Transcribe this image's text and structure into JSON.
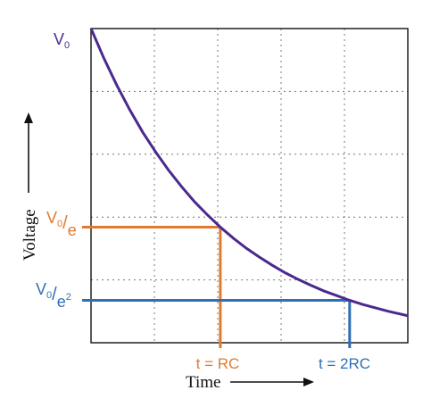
{
  "chart_data": {
    "type": "line",
    "title": "",
    "xlabel": "Time",
    "ylabel": "Voltage",
    "xlim": [
      0,
      2.45
    ],
    "ylim": [
      0,
      1.0
    ],
    "grid": true,
    "grid_divisions": {
      "x": 5,
      "y": 5
    },
    "series": [
      {
        "color": "#4b2a8e",
        "x": [
          0,
          0.1,
          0.2,
          0.3,
          0.4,
          0.5,
          0.6,
          0.7,
          0.8,
          0.9,
          1.0,
          1.1,
          1.2,
          1.3,
          1.4,
          1.5,
          1.6,
          1.7,
          1.8,
          1.9,
          2.0,
          2.1,
          2.2,
          2.3,
          2.45
        ],
        "y": [
          1.0,
          0.905,
          0.819,
          0.741,
          0.67,
          0.607,
          0.549,
          0.497,
          0.449,
          0.407,
          0.368,
          0.333,
          0.301,
          0.273,
          0.247,
          0.223,
          0.202,
          0.183,
          0.165,
          0.15,
          0.135,
          0.122,
          0.111,
          0.1,
          0.086
        ]
      }
    ],
    "y_labels": {
      "v0": {
        "base": "V",
        "sub": "0"
      },
      "v0e": {
        "base": "V",
        "sub": "0",
        "den": "e"
      },
      "v0e2": {
        "base": "V",
        "sub": "0",
        "den": "e",
        "exp": "2"
      }
    },
    "markers": [
      {
        "name": "t-rc",
        "x": 1.0,
        "y": 0.368,
        "label": "t = RC",
        "color": "#e07a2e"
      },
      {
        "name": "t-2rc",
        "x": 2.0,
        "y": 0.135,
        "label": "t = 2RC",
        "color": "#2f6fb6"
      }
    ],
    "axis_arrows": true
  }
}
